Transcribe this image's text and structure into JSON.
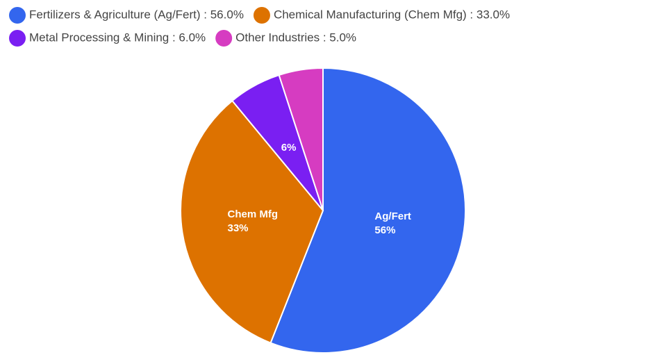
{
  "chart_data": {
    "type": "pie",
    "labels": [
      "Fertilizers & Agriculture (Ag/Fert) : 56.0%",
      "Chemical Manufacturing (Chem Mfg) : 33.0%",
      "Metal Processing & Mining : 6.0%",
      "Other Industries : 5.0%"
    ],
    "values": [
      56,
      33,
      6,
      5
    ],
    "slice_labels": [
      "Ag/Fert",
      "Chem Mfg",
      null,
      null
    ],
    "value_labels": [
      "56%",
      "33%",
      "6%",
      null
    ],
    "colors": [
      "#3366ee",
      "#dd7200",
      "#7a1ff2",
      "#d63cc1"
    ]
  }
}
